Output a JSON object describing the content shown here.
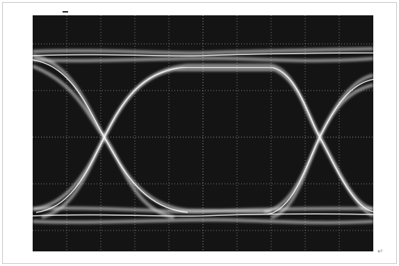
{
  "document": {
    "paragraph_mark": "↵"
  }
}
